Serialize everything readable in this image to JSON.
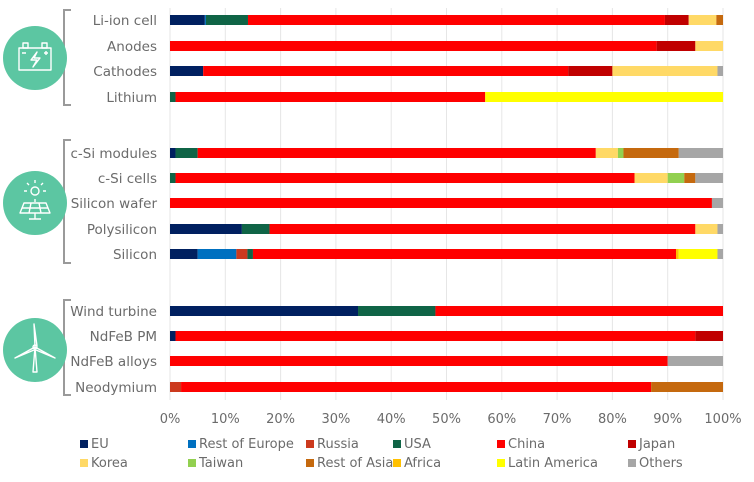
{
  "chart_data": {
    "type": "bar",
    "orientation": "horizontal",
    "stacked": true,
    "xlim": [
      0,
      100
    ],
    "x_ticks": [
      "0%",
      "10%",
      "20%",
      "30%",
      "40%",
      "50%",
      "60%",
      "70%",
      "80%",
      "90%",
      "100%"
    ],
    "grid": true,
    "legend_placement": "bottom",
    "series_names": [
      "EU",
      "Rest of Europe",
      "Russia",
      "USA",
      "China",
      "Japan",
      "Korea",
      "Taiwan",
      "Rest of Asia",
      "Africa",
      "Latin America",
      "Others"
    ],
    "colors": {
      "EU": "#002060",
      "Rest of Europe": "#0070c0",
      "Russia": "#cc3a1e",
      "USA": "#0f6446",
      "China": "#ff0000",
      "Japan": "#c00000",
      "Korea": "#ffd966",
      "Taiwan": "#92d050",
      "Rest of Asia": "#c5690e",
      "Africa": "#ffc000",
      "Latin America": "#ffff00",
      "Others": "#a6a6a6"
    },
    "groups": [
      {
        "icon": "battery-icon",
        "rows": [
          {
            "label": "Li-ion cell",
            "values": {
              "EU": 6.3,
              "Rest of Europe": 0.2,
              "USA": 7.6,
              "China": 75.4,
              "Japan": 4.3,
              "Korea": 5,
              "Rest of Asia": 1.2
            }
          },
          {
            "label": "Anodes",
            "values": {
              "China": 88,
              "Japan": 7,
              "Korea": 5
            }
          },
          {
            "label": "Cathodes",
            "values": {
              "EU": 6,
              "China": 66,
              "Japan": 8,
              "Korea": 19,
              "Others": 1
            }
          },
          {
            "label": "Lithium",
            "values": {
              "USA": 1,
              "China": 56,
              "Latin America": 43
            }
          }
        ]
      },
      {
        "icon": "solar-panel-icon",
        "rows": [
          {
            "label": "c-Si modules",
            "values": {
              "EU": 1,
              "USA": 4,
              "China": 72,
              "Korea": 4,
              "Taiwan": 1,
              "Rest of Asia": 10,
              "Others": 8
            }
          },
          {
            "label": "c-Si cells",
            "values": {
              "USA": 1,
              "China": 83,
              "Korea": 6,
              "Taiwan": 3,
              "Rest of Asia": 2,
              "Others": 5
            }
          },
          {
            "label": "Silicon wafer",
            "values": {
              "China": 98,
              "Others": 2
            }
          },
          {
            "label": "Polysilicon",
            "values": {
              "EU": 13,
              "USA": 5,
              "China": 77,
              "Korea": 4,
              "Others": 1
            }
          },
          {
            "label": "Silicon",
            "values": {
              "EU": 5,
              "Rest of Europe": 7,
              "Russia": 2,
              "USA": 1,
              "China": 76.5,
              "Africa": 0.5,
              "Latin America": 7,
              "Others": 1
            }
          }
        ]
      },
      {
        "icon": "wind-turbine-icon",
        "rows": [
          {
            "label": "Wind turbine",
            "values": {
              "EU": 34,
              "USA": 14,
              "China": 52
            }
          },
          {
            "label": "NdFeB PM",
            "values": {
              "EU": 1,
              "China": 94,
              "Japan": 5
            }
          },
          {
            "label": "NdFeB alloys",
            "values": {
              "China": 90,
              "Others": 10
            }
          },
          {
            "label": "Neodymium",
            "values": {
              "Russia": 2,
              "China": 85,
              "Rest of Asia": 13
            }
          }
        ]
      }
    ]
  },
  "icon_color": "#5cc6a2"
}
